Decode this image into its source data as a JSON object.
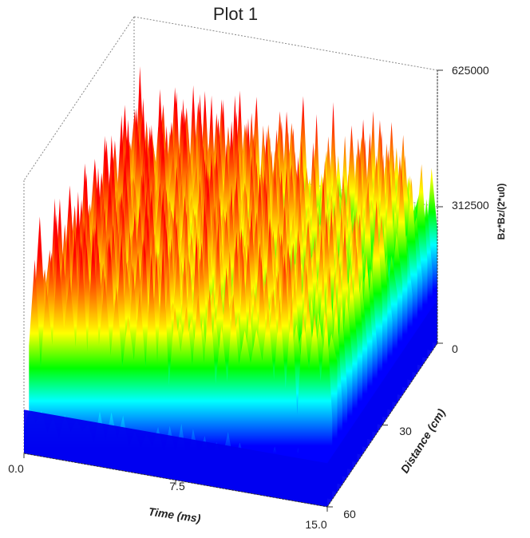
{
  "chart_data": {
    "type": "surface",
    "title": "Plot 1",
    "xlabel": "Time (ms)",
    "ylabel": "Distance (cm)",
    "zlabel": "Bz*Bz/(2*u0)",
    "xlim": [
      0,
      15
    ],
    "ylim": [
      0,
      60
    ],
    "zlim": [
      0,
      625000
    ],
    "xticks": [
      "0.0",
      "7.5",
      "15.0"
    ],
    "yticks": [
      "30",
      "60"
    ],
    "zticks": [
      "0",
      "312500",
      "625000"
    ],
    "colormap": [
      "#0000ff",
      "#00ffff",
      "#00ff00",
      "#ffff00",
      "#ff8000",
      "#ff0000"
    ],
    "grid": false
  }
}
